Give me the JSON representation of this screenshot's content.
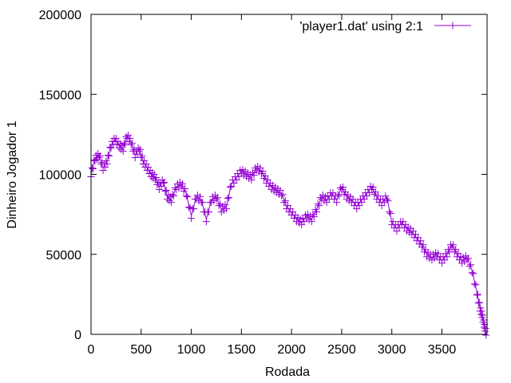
{
  "chart_data": {
    "type": "line",
    "title": "",
    "xlabel": "Rodada",
    "ylabel": "Dinheiro Jogador 1",
    "xlim": [
      0,
      3950
    ],
    "ylim": [
      0,
      200000
    ],
    "x_ticks": [
      "0",
      "500",
      "1000",
      "1500",
      "2000",
      "2500",
      "3000",
      "3500"
    ],
    "x_tick_values": [
      0,
      500,
      1000,
      1500,
      2000,
      2500,
      3000,
      3500
    ],
    "y_ticks": [
      "0",
      "50000",
      "100000",
      "150000",
      "200000"
    ],
    "y_tick_values": [
      0,
      50000,
      100000,
      150000,
      200000
    ],
    "grid": false,
    "legend_position": "top-right",
    "series": [
      {
        "name": "'player1.dat' using 2:1",
        "color": "#9400d3",
        "marker": "plus",
        "x": [
          0,
          40,
          80,
          120,
          160,
          200,
          240,
          280,
          320,
          360,
          400,
          440,
          480,
          520,
          560,
          600,
          640,
          680,
          720,
          760,
          800,
          850,
          900,
          950,
          1000,
          1050,
          1100,
          1150,
          1200,
          1250,
          1300,
          1350,
          1400,
          1450,
          1500,
          1550,
          1600,
          1650,
          1700,
          1750,
          1800,
          1850,
          1900,
          1950,
          2000,
          2050,
          2100,
          2150,
          2200,
          2250,
          2300,
          2350,
          2400,
          2450,
          2500,
          2550,
          2600,
          2650,
          2700,
          2750,
          2800,
          2850,
          2900,
          2950,
          3000,
          3050,
          3100,
          3150,
          3200,
          3250,
          3300,
          3350,
          3400,
          3450,
          3500,
          3550,
          3600,
          3650,
          3700,
          3750,
          3800,
          3850,
          3880,
          3900,
          3920,
          3940
        ],
        "y": [
          100000,
          110000,
          112000,
          104000,
          108000,
          118000,
          122000,
          118000,
          116000,
          124000,
          120000,
          112000,
          116000,
          108000,
          104000,
          100000,
          98000,
          92000,
          96000,
          86000,
          84000,
          92000,
          94000,
          88000,
          74000,
          86000,
          84000,
          72000,
          84000,
          86000,
          78000,
          80000,
          94000,
          98000,
          102000,
          100000,
          98000,
          104000,
          102000,
          96000,
          92000,
          90000,
          88000,
          80000,
          76000,
          72000,
          70000,
          74000,
          72000,
          78000,
          86000,
          84000,
          88000,
          84000,
          92000,
          86000,
          84000,
          80000,
          84000,
          88000,
          92000,
          86000,
          82000,
          86000,
          70000,
          66000,
          70000,
          66000,
          64000,
          60000,
          56000,
          50000,
          48000,
          50000,
          46000,
          50000,
          56000,
          50000,
          46000,
          48000,
          40000,
          26000,
          16000,
          12000,
          6000,
          1000
        ]
      }
    ]
  }
}
